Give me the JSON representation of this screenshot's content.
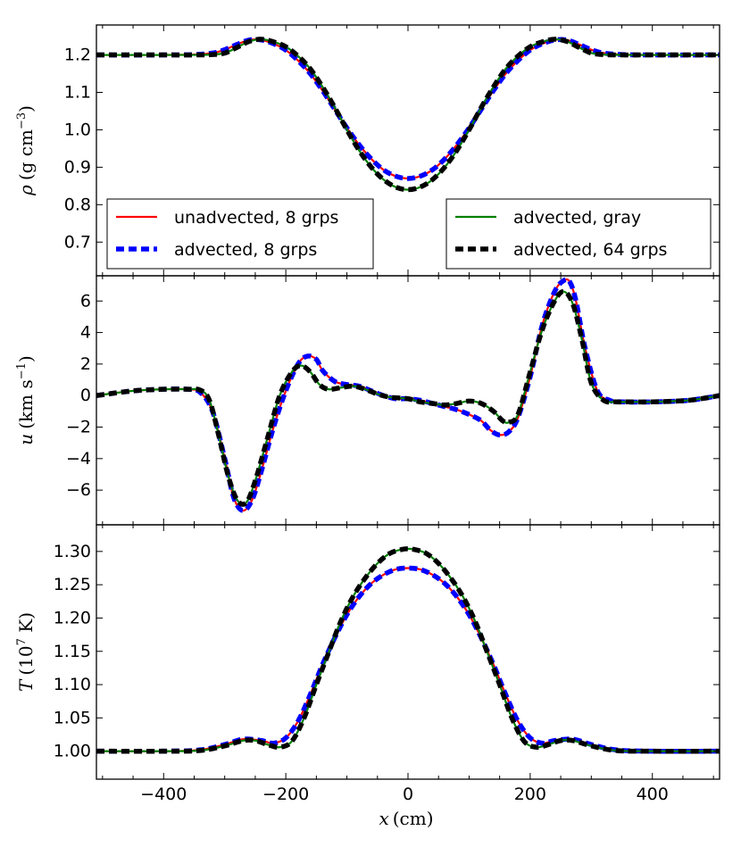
{
  "chart_data": {
    "type": "line",
    "x_range": [
      -510,
      510
    ],
    "x_ticks": [
      -400,
      -200,
      0,
      200,
      400
    ],
    "x_tick_labels": [
      "−400",
      "−200",
      "0",
      "200",
      "400"
    ],
    "xlabel": "x (cm)",
    "xlabel_var": "x",
    "xlabel_unit": "(cm)",
    "series_styles": [
      {
        "key": "unadvected8",
        "name": "unadvected, 8 grps",
        "color": "#ff0000",
        "dash": "none",
        "width": 2.2
      },
      {
        "key": "advectedgray",
        "name": "advected, gray",
        "color": "#008000",
        "dash": "none",
        "width": 2.2
      },
      {
        "key": "advected64",
        "name": "advected, 64 grps",
        "color": "#000000",
        "dash": "dashed",
        "width": 5.5
      },
      {
        "key": "advected8",
        "name": "advected, 8 grps",
        "color": "#0000ff",
        "dash": "dashed",
        "width": 5.5
      }
    ],
    "legend": {
      "placement": "lower-left and lower-right of top panel",
      "left": [
        "unadvected, 8 grps",
        "advected, 8 grps"
      ],
      "right": [
        "advected, gray",
        "advected, 64 grps"
      ]
    },
    "panels": [
      {
        "id": "rho",
        "ylabel": "ρ (g cm⁻³)",
        "ylabel_var": "ρ",
        "ylabel_unit": "(g cm",
        "ylabel_sup": "−3",
        "ylabel_close": ")",
        "ylim": [
          0.61,
          1.28
        ],
        "yticks": [
          0.7,
          0.8,
          0.9,
          1.0,
          1.1,
          1.2
        ],
        "ytick_labels": [
          "0.7",
          "0.8",
          "0.9",
          "1.0",
          "1.1",
          "1.2"
        ],
        "series": [
          {
            "key": "group_a",
            "draw": [
              "unadvected8",
              "advected8"
            ],
            "x": [
              -510,
              -400,
              -350,
              -320,
              -300,
              -280,
              -260,
              -240,
              -220,
              -200,
              -180,
              -160,
              -140,
              -120,
              -100,
              -80,
              -60,
              -40,
              -20,
              0,
              20,
              40,
              60,
              80,
              100,
              120,
              140,
              160,
              180,
              200,
              220,
              240,
              260,
              280,
              300,
              320,
              350,
              400,
              510
            ],
            "y": [
              1.2,
              1.2,
              1.201,
              1.205,
              1.214,
              1.228,
              1.24,
              1.24,
              1.23,
              1.213,
              1.185,
              1.15,
              1.105,
              1.055,
              1.005,
              0.96,
              0.922,
              0.893,
              0.876,
              0.87,
              0.876,
              0.893,
              0.922,
              0.96,
              1.005,
              1.055,
              1.105,
              1.15,
              1.185,
              1.213,
              1.23,
              1.24,
              1.24,
              1.228,
              1.214,
              1.205,
              1.201,
              1.2,
              1.2
            ]
          },
          {
            "key": "group_b",
            "draw": [
              "advectedgray",
              "advected64"
            ],
            "x": [
              -510,
              -400,
              -350,
              -320,
              -300,
              -280,
              -260,
              -240,
              -220,
              -200,
              -180,
              -160,
              -140,
              -120,
              -100,
              -80,
              -60,
              -40,
              -20,
              0,
              20,
              40,
              60,
              80,
              100,
              120,
              140,
              160,
              180,
              200,
              220,
              240,
              260,
              280,
              300,
              320,
              350,
              400,
              510
            ],
            "y": [
              1.2,
              1.2,
              1.2,
              1.201,
              1.205,
              1.22,
              1.236,
              1.242,
              1.235,
              1.222,
              1.197,
              1.163,
              1.115,
              1.06,
              1.0,
              0.945,
              0.9,
              0.867,
              0.847,
              0.84,
              0.847,
              0.867,
              0.9,
              0.945,
              1.0,
              1.06,
              1.115,
              1.163,
              1.197,
              1.222,
              1.235,
              1.242,
              1.236,
              1.22,
              1.205,
              1.201,
              1.2,
              1.2,
              1.2
            ]
          }
        ]
      },
      {
        "id": "u",
        "ylabel": "u (km s⁻¹)",
        "ylabel_var": "u",
        "ylabel_unit": "(km s",
        "ylabel_sup": "−1",
        "ylabel_close": ")",
        "ylim": [
          -8.2,
          7.6
        ],
        "yticks": [
          -6,
          -4,
          -2,
          0,
          2,
          4,
          6
        ],
        "ytick_labels": [
          "−6",
          "−4",
          "−2",
          "0",
          "2",
          "4",
          "6"
        ],
        "series": [
          {
            "key": "group_a",
            "draw": [
              "unadvected8",
              "advected8"
            ],
            "x": [
              -510,
              -450,
              -400,
              -360,
              -340,
              -320,
              -300,
              -285,
              -270,
              -255,
              -240,
              -220,
              -200,
              -180,
              -165,
              -150,
              -140,
              -120,
              -100,
              -80,
              -60,
              -40,
              -20,
              0,
              20,
              40,
              60,
              80,
              100,
              120,
              135,
              150,
              165,
              180,
              200,
              220,
              240,
              255,
              265,
              275,
              290,
              310,
              330,
              350,
              400,
              460,
              510
            ],
            "y": [
              0.0,
              0.3,
              0.4,
              0.4,
              0.2,
              -1.0,
              -4.0,
              -6.5,
              -7.3,
              -6.6,
              -4.8,
              -2.0,
              0.3,
              2.0,
              2.5,
              2.3,
              1.6,
              0.9,
              0.7,
              0.6,
              0.3,
              0.0,
              -0.2,
              -0.2,
              -0.3,
              -0.5,
              -0.7,
              -0.9,
              -1.2,
              -1.6,
              -2.2,
              -2.5,
              -2.3,
              -1.4,
              1.2,
              4.5,
              6.6,
              7.3,
              7.2,
              6.0,
              3.0,
              0.3,
              -0.3,
              -0.4,
              -0.4,
              -0.3,
              0.0
            ]
          },
          {
            "key": "group_b",
            "draw": [
              "advectedgray",
              "advected64"
            ],
            "x": [
              -510,
              -450,
              -400,
              -360,
              -340,
              -325,
              -310,
              -295,
              -280,
              -265,
              -250,
              -230,
              -210,
              -190,
              -175,
              -160,
              -145,
              -130,
              -110,
              -90,
              -70,
              -50,
              -30,
              0,
              20,
              40,
              60,
              80,
              100,
              120,
              140,
              155,
              165,
              180,
              200,
              220,
              240,
              255,
              270,
              285,
              300,
              320,
              340,
              360,
              400,
              460,
              510
            ],
            "y": [
              0.0,
              0.3,
              0.4,
              0.4,
              0.35,
              -0.3,
              -2.5,
              -5.0,
              -6.6,
              -6.8,
              -5.4,
              -2.7,
              0.0,
              1.5,
              1.9,
              1.5,
              0.7,
              0.4,
              0.5,
              0.6,
              0.4,
              0.1,
              -0.1,
              -0.2,
              -0.4,
              -0.5,
              -0.6,
              -0.5,
              -0.35,
              -0.5,
              -1.0,
              -1.6,
              -1.7,
              -1.2,
              1.5,
              4.2,
              6.0,
              6.6,
              5.8,
              3.5,
              0.8,
              -0.3,
              -0.4,
              -0.4,
              -0.4,
              -0.3,
              0.0
            ]
          }
        ]
      },
      {
        "id": "T",
        "ylabel": "T (10⁷ K)",
        "ylabel_var": "T",
        "ylabel_unit": "(10",
        "ylabel_sup": "7",
        "ylabel_close": " K)",
        "ylim": [
          0.958,
          1.34
        ],
        "yticks": [
          1.0,
          1.05,
          1.1,
          1.15,
          1.2,
          1.25,
          1.3
        ],
        "ytick_labels": [
          "1.00",
          "1.05",
          "1.10",
          "1.15",
          "1.20",
          "1.25",
          "1.30"
        ],
        "series": [
          {
            "key": "group_a",
            "draw": [
              "unadvected8",
              "advected8"
            ],
            "x": [
              -510,
              -400,
              -340,
              -300,
              -270,
              -240,
              -220,
              -200,
              -180,
              -160,
              -140,
              -120,
              -100,
              -80,
              -60,
              -40,
              -20,
              0,
              20,
              40,
              60,
              80,
              100,
              120,
              140,
              160,
              180,
              200,
              220,
              240,
              270,
              300,
              340,
              400,
              510
            ],
            "y": [
              1.0,
              1.0,
              1.002,
              1.01,
              1.018,
              1.016,
              1.012,
              1.02,
              1.045,
              1.085,
              1.13,
              1.17,
              1.205,
              1.232,
              1.252,
              1.265,
              1.273,
              1.275,
              1.273,
              1.265,
              1.252,
              1.232,
              1.205,
              1.17,
              1.13,
              1.085,
              1.045,
              1.02,
              1.012,
              1.016,
              1.018,
              1.01,
              1.002,
              1.0,
              1.0
            ]
          },
          {
            "key": "group_b",
            "draw": [
              "advectedgray",
              "advected64"
            ],
            "x": [
              -510,
              -400,
              -340,
              -300,
              -270,
              -250,
              -230,
              -210,
              -190,
              -170,
              -150,
              -130,
              -110,
              -90,
              -70,
              -50,
              -30,
              -10,
              0,
              10,
              30,
              50,
              70,
              90,
              110,
              130,
              150,
              170,
              190,
              210,
              230,
              250,
              270,
              300,
              340,
              400,
              510
            ],
            "y": [
              1.0,
              1.0,
              1.001,
              1.008,
              1.016,
              1.016,
              1.01,
              1.006,
              1.015,
              1.05,
              1.1,
              1.148,
              1.195,
              1.232,
              1.26,
              1.282,
              1.297,
              1.303,
              1.304,
              1.303,
              1.297,
              1.282,
              1.26,
              1.232,
              1.195,
              1.148,
              1.1,
              1.05,
              1.015,
              1.006,
              1.01,
              1.016,
              1.016,
              1.008,
              1.001,
              1.0,
              1.0
            ]
          }
        ]
      }
    ]
  }
}
